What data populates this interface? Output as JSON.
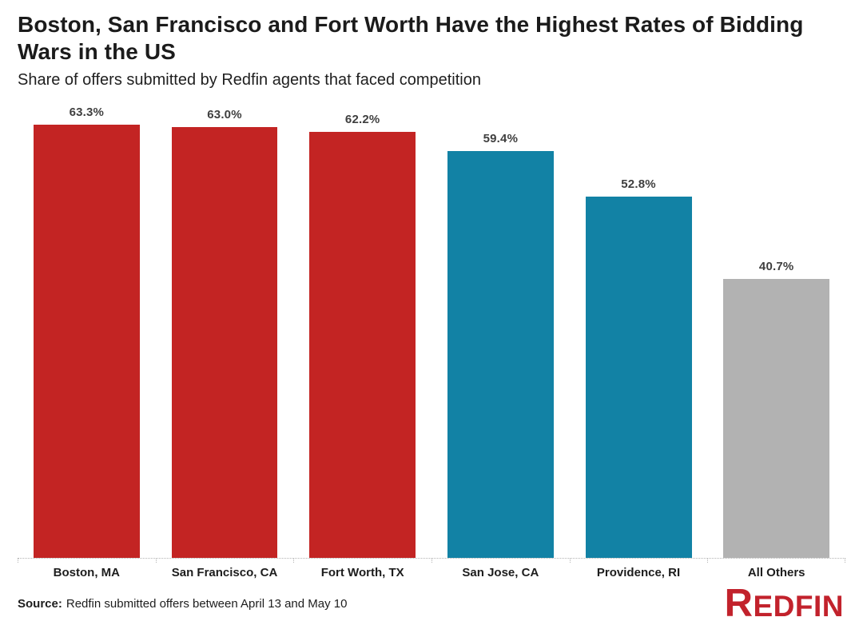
{
  "header": {
    "title_line1": "Boston, San Francisco and Fort Worth Have the Highest Rates of Bidding",
    "title_line2": "Wars in the US"
  },
  "source": {
    "label": "Source:",
    "text": "Redfin submitted offers between April 13 and May 10"
  },
  "logo_text": "REDFIN",
  "colors": {
    "bar_red": "#c32423",
    "bar_teal": "#1282a5",
    "bar_gray": "#b2b2b2",
    "logo_red": "#c2222c"
  },
  "chart_data": {
    "type": "bar",
    "title": "Boston, San Francisco and Fort Worth Have the Highest Rates of Bidding Wars in the US",
    "subtitle": "Share of offers submitted by Redfin agents that faced competition",
    "categories": [
      "Boston, MA",
      "San Francisco, CA",
      "Fort Worth, TX",
      "San Jose, CA",
      "Providence, RI",
      "All Others"
    ],
    "values": [
      63.3,
      63.0,
      62.2,
      59.4,
      52.8,
      40.7
    ],
    "value_labels": [
      "63.3%",
      "63.0%",
      "62.2%",
      "59.4%",
      "52.8%",
      "40.7%"
    ],
    "bar_colors": [
      "#c32423",
      "#c32423",
      "#c32423",
      "#1282a5",
      "#1282a5",
      "#b2b2b2"
    ],
    "xlabel": "",
    "ylabel": "",
    "ylim": [
      0,
      67.5
    ],
    "grid": false,
    "legend": false
  }
}
